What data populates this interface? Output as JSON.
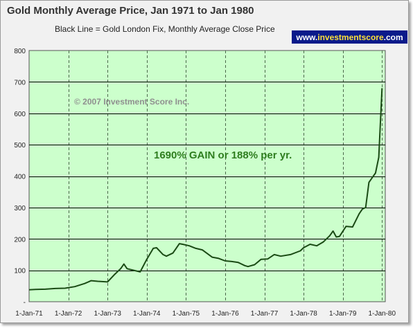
{
  "header": {
    "title": "Gold Monthly Average Price, Jan 1971 to Jan 1980",
    "subtitle": "Black Line = Gold London Fix, Monthly Average Close Price",
    "brand_prefix": "www.",
    "brand_highlight": "investmentscore",
    "brand_suffix": ".com"
  },
  "annotations": {
    "copyright": "© 2007 Investment Score Inc.",
    "gain": "1690% GAIN or 188% per yr."
  },
  "colors": {
    "plot_background": "#ccffcc",
    "line": "#1a4a14",
    "grid_horizontal": "#000000",
    "grid_vertical": "#4a6a4a",
    "gain_text": "#2e7d1f",
    "brand_background": "#0a1a8a",
    "brand_highlight": "#ffe23a"
  },
  "chart_data": {
    "type": "line",
    "title": "Gold Monthly Average Price, Jan 1971 to Jan 1980",
    "subtitle": "Black Line = Gold London Fix, Monthly Average Close Price",
    "xlabel": "",
    "ylabel": "",
    "ylim": [
      0,
      800
    ],
    "yticks": [
      0,
      100,
      200,
      300,
      400,
      500,
      600,
      700,
      800
    ],
    "ytick_labels": [
      "-",
      "100",
      "200",
      "300",
      "400",
      "500",
      "600",
      "700",
      "800"
    ],
    "xlim": [
      "1971-01",
      "1980-02"
    ],
    "xticks": [
      "1971-01",
      "1972-01",
      "1973-01",
      "1974-01",
      "1975-01",
      "1976-01",
      "1977-01",
      "1978-01",
      "1979-01",
      "1980-01"
    ],
    "xtick_labels": [
      "1-Jan-71",
      "1-Jan-72",
      "1-Jan-73",
      "1-Jan-74",
      "1-Jan-75",
      "1-Jan-76",
      "1-Jan-77",
      "1-Jan-78",
      "1-Jan-79",
      "1-Jan-80"
    ],
    "grid": true,
    "legend": "none",
    "series": [
      {
        "x": [
          "1971-01",
          "1971-03",
          "1971-06",
          "1971-09",
          "1971-12",
          "1972-03",
          "1972-06",
          "1972-08",
          "1972-10",
          "1973-01",
          "1973-03",
          "1973-05",
          "1973-06",
          "1973-07",
          "1973-09",
          "1973-11",
          "1974-01",
          "1974-03",
          "1974-04",
          "1974-06",
          "1974-07",
          "1974-09",
          "1974-11",
          "1974-12",
          "1975-02",
          "1975-04",
          "1975-06",
          "1975-09",
          "1975-11",
          "1976-01",
          "1976-03",
          "1976-05",
          "1976-07",
          "1976-08",
          "1976-10",
          "1976-12",
          "1977-02",
          "1977-04",
          "1977-06",
          "1977-09",
          "1977-12",
          "1978-01",
          "1978-03",
          "1978-05",
          "1978-07",
          "1978-09",
          "1978-10",
          "1978-11",
          "1978-12",
          "1979-02",
          "1979-04",
          "1979-06",
          "1979-07",
          "1979-08",
          "1979-09",
          "1979-10",
          "1979-11",
          "1979-12",
          "1980-01"
        ],
        "values": [
          38,
          39,
          40,
          42,
          43,
          48,
          58,
          67,
          65,
          63,
          85,
          105,
          120,
          105,
          100,
          95,
          135,
          170,
          172,
          150,
          145,
          155,
          185,
          183,
          178,
          170,
          165,
          142,
          138,
          130,
          128,
          125,
          115,
          112,
          118,
          135,
          136,
          150,
          145,
          150,
          162,
          172,
          183,
          178,
          190,
          210,
          225,
          206,
          208,
          240,
          238,
          280,
          295,
          300,
          380,
          395,
          410,
          460,
          680
        ]
      }
    ]
  }
}
